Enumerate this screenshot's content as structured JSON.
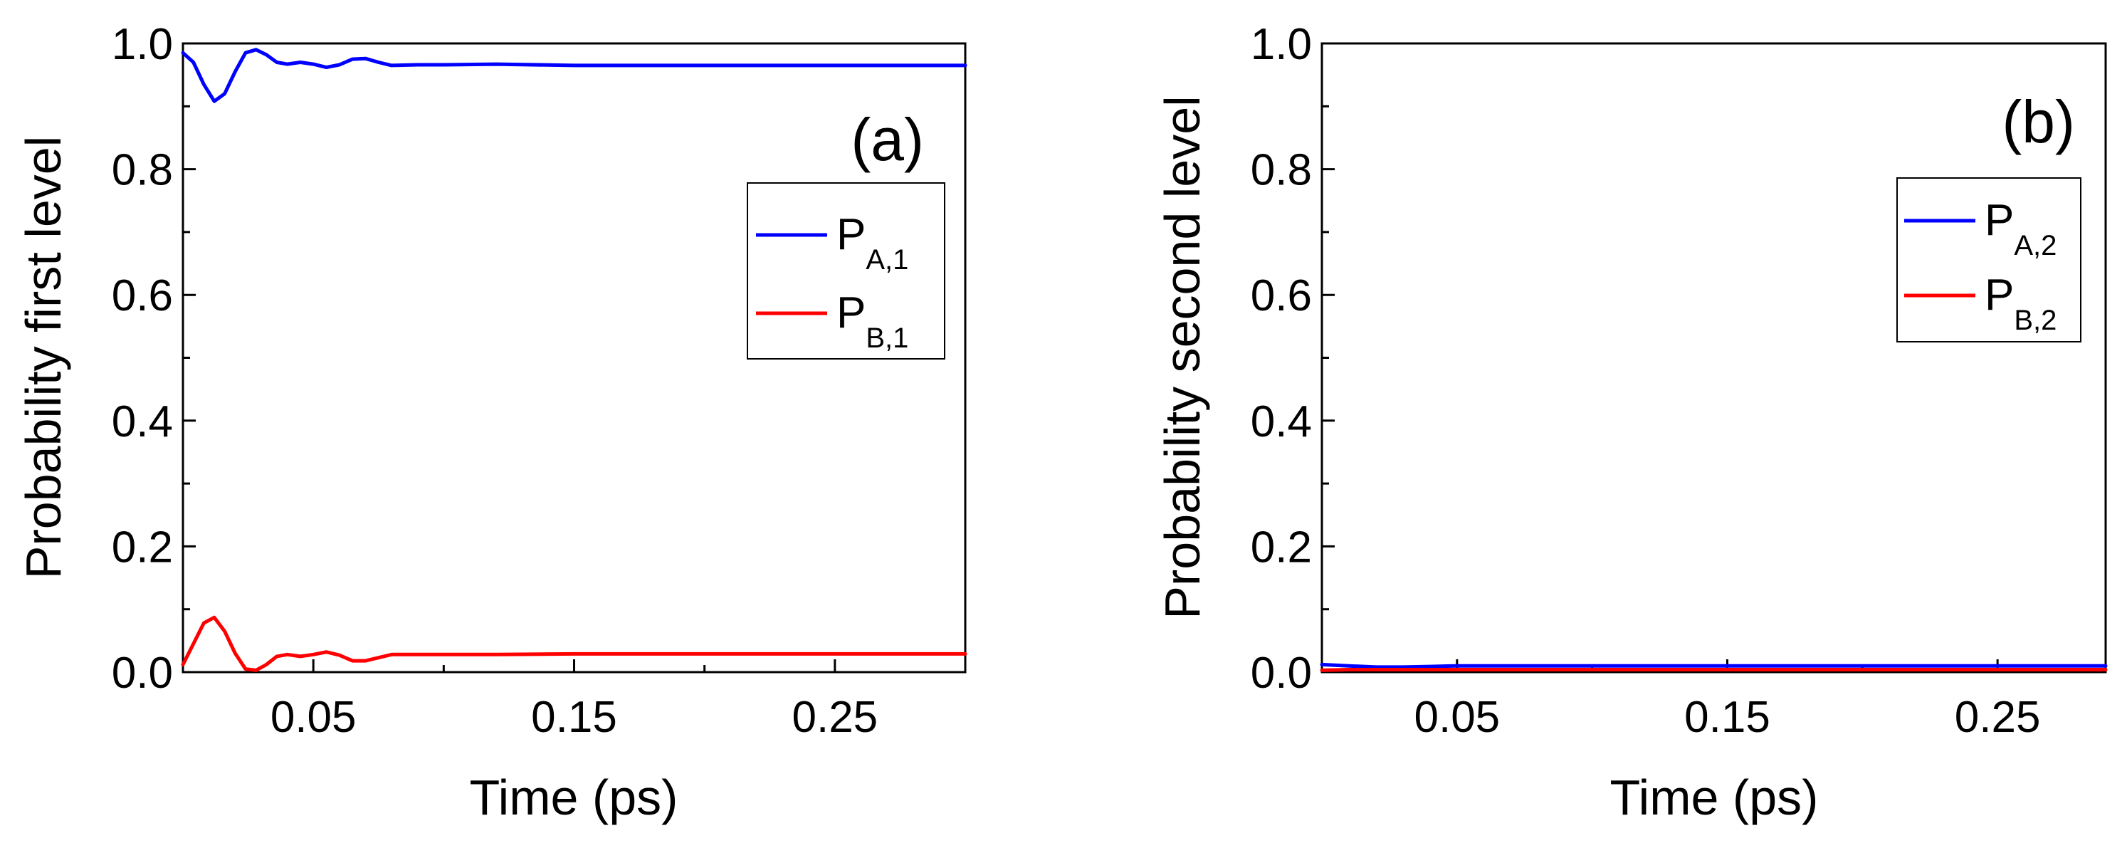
{
  "chart_data": [
    {
      "type": "line",
      "panel_label": "(a)",
      "xlabel": "Time (ps)",
      "ylabel": "Probability first level",
      "xlim": [
        0,
        0.3
      ],
      "ylim": [
        0,
        1.0
      ],
      "xticks": [
        0.05,
        0.15,
        0.25
      ],
      "xtick_labels": [
        "0.05",
        "0.15",
        "0.25"
      ],
      "yticks": [
        0.0,
        0.2,
        0.4,
        0.6,
        0.8,
        1.0
      ],
      "ytick_labels": [
        "0.0",
        "0.2",
        "0.4",
        "0.6",
        "0.8",
        "1.0"
      ],
      "legend_position": "right",
      "grid": false,
      "series": [
        {
          "name": "P",
          "name_sub": "A,1",
          "color": "#0000ff",
          "x": [
            0,
            0.004,
            0.008,
            0.012,
            0.016,
            0.02,
            0.024,
            0.028,
            0.032,
            0.036,
            0.04,
            0.045,
            0.05,
            0.055,
            0.06,
            0.065,
            0.07,
            0.075,
            0.08,
            0.09,
            0.1,
            0.12,
            0.15,
            0.2,
            0.25,
            0.3
          ],
          "y": [
            0.985,
            0.97,
            0.935,
            0.908,
            0.92,
            0.955,
            0.985,
            0.99,
            0.982,
            0.97,
            0.967,
            0.97,
            0.967,
            0.962,
            0.966,
            0.975,
            0.976,
            0.97,
            0.965,
            0.966,
            0.966,
            0.967,
            0.965,
            0.965,
            0.965,
            0.965
          ]
        },
        {
          "name": "P",
          "name_sub": "B,1",
          "color": "#ff0000",
          "x": [
            0,
            0.004,
            0.008,
            0.012,
            0.016,
            0.02,
            0.024,
            0.028,
            0.032,
            0.036,
            0.04,
            0.045,
            0.05,
            0.055,
            0.06,
            0.065,
            0.07,
            0.075,
            0.08,
            0.09,
            0.1,
            0.12,
            0.15,
            0.2,
            0.25,
            0.3
          ],
          "y": [
            0.012,
            0.045,
            0.078,
            0.087,
            0.065,
            0.03,
            0.005,
            0.003,
            0.012,
            0.025,
            0.028,
            0.025,
            0.028,
            0.032,
            0.027,
            0.018,
            0.018,
            0.023,
            0.028,
            0.028,
            0.028,
            0.028,
            0.029,
            0.029,
            0.029,
            0.029
          ]
        }
      ]
    },
    {
      "type": "line",
      "panel_label": "(b)",
      "xlabel": "Time (ps)",
      "ylabel": "Probability second level",
      "xlim": [
        0,
        0.29
      ],
      "ylim": [
        0,
        1.0
      ],
      "xticks": [
        0.05,
        0.15,
        0.25
      ],
      "xtick_labels": [
        "0.05",
        "0.15",
        "0.25"
      ],
      "yticks": [
        0.0,
        0.2,
        0.4,
        0.6,
        0.8,
        1.0
      ],
      "ytick_labels": [
        "0.0",
        "0.2",
        "0.4",
        "0.6",
        "0.8",
        "1.0"
      ],
      "legend_position": "right",
      "grid": false,
      "series": [
        {
          "name": "P",
          "name_sub": "A,2",
          "color": "#0000ff",
          "x": [
            0,
            0.01,
            0.02,
            0.03,
            0.04,
            0.05,
            0.06,
            0.08,
            0.1,
            0.15,
            0.2,
            0.25,
            0.29
          ],
          "y": [
            0.012,
            0.01,
            0.008,
            0.008,
            0.009,
            0.01,
            0.01,
            0.01,
            0.01,
            0.01,
            0.01,
            0.01,
            0.01
          ]
        },
        {
          "name": "P",
          "name_sub": "B,2",
          "color": "#ff0000",
          "x": [
            0,
            0.01,
            0.02,
            0.03,
            0.05,
            0.08,
            0.1,
            0.15,
            0.2,
            0.25,
            0.29
          ],
          "y": [
            0.003,
            0.004,
            0.004,
            0.004,
            0.004,
            0.004,
            0.004,
            0.004,
            0.004,
            0.004,
            0.004
          ]
        }
      ]
    }
  ]
}
